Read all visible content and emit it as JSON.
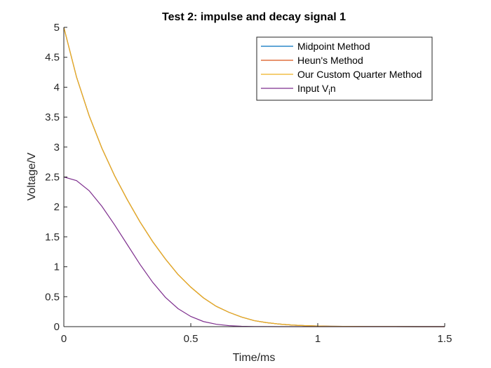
{
  "chart_data": {
    "type": "line",
    "title": "Test 2: impulse and decay signal 1",
    "xlabel": "Time/ms",
    "ylabel": "Voltage/V",
    "xlim": [
      0,
      1.5
    ],
    "ylim": [
      0,
      5
    ],
    "xticks": [
      "0",
      "0.5",
      "1",
      "1.5"
    ],
    "yticks": [
      "0",
      "0.5",
      "1",
      "1.5",
      "2",
      "2.5",
      "3",
      "3.5",
      "4",
      "4.5",
      "5"
    ],
    "grid": false,
    "legend_position": "top-right",
    "x": [
      0,
      0.05,
      0.1,
      0.15,
      0.2,
      0.25,
      0.3,
      0.35,
      0.4,
      0.45,
      0.5,
      0.55,
      0.6,
      0.65,
      0.7,
      0.75,
      0.8,
      0.85,
      0.9,
      0.95,
      1.0,
      1.05,
      1.1,
      1.2,
      1.3,
      1.4,
      1.5
    ],
    "series": [
      {
        "name": "Midpoint Method",
        "color": "#0072BD",
        "values": [
          5.0,
          4.17,
          3.52,
          2.98,
          2.52,
          2.12,
          1.75,
          1.42,
          1.13,
          0.87,
          0.66,
          0.48,
          0.34,
          0.24,
          0.16,
          0.1,
          0.066,
          0.042,
          0.026,
          0.016,
          0.01,
          0.006,
          0.004,
          0.002,
          0.001,
          0.0,
          0.0
        ]
      },
      {
        "name": "Heun's Method",
        "color": "#D95319",
        "values": [
          5.0,
          4.17,
          3.52,
          2.98,
          2.52,
          2.12,
          1.75,
          1.42,
          1.13,
          0.87,
          0.66,
          0.48,
          0.34,
          0.24,
          0.16,
          0.1,
          0.066,
          0.042,
          0.026,
          0.016,
          0.01,
          0.006,
          0.004,
          0.002,
          0.001,
          0.0,
          0.0
        ]
      },
      {
        "name": "Our Custom Quarter Method",
        "color": "#EDB120",
        "values": [
          5.0,
          4.17,
          3.52,
          2.98,
          2.52,
          2.12,
          1.75,
          1.42,
          1.13,
          0.87,
          0.66,
          0.48,
          0.34,
          0.24,
          0.16,
          0.1,
          0.066,
          0.042,
          0.026,
          0.016,
          0.01,
          0.006,
          0.004,
          0.002,
          0.001,
          0.0,
          0.0
        ]
      },
      {
        "name": "Input V",
        "name_subscript": "i",
        "name_suffix": "n",
        "color": "#7E2F8E",
        "values": [
          2.5,
          2.44,
          2.27,
          2.01,
          1.7,
          1.37,
          1.04,
          0.74,
          0.49,
          0.3,
          0.17,
          0.085,
          0.04,
          0.017,
          0.006,
          0.002,
          0.001,
          0.0,
          0.0,
          0.0,
          0.0,
          0.0,
          0.0,
          0.0,
          0.0,
          0.0,
          0.0
        ]
      }
    ]
  }
}
